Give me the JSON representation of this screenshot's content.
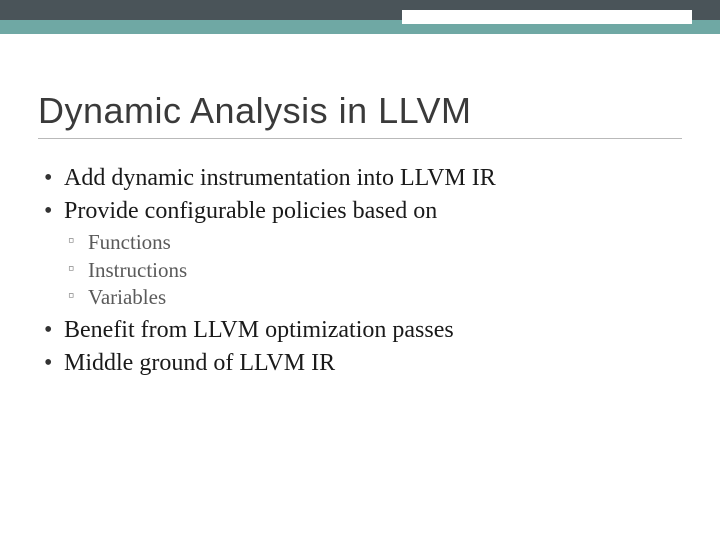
{
  "theme": {
    "band_dark": "#4a5459",
    "band_teal": "#6fa8a4",
    "title_color": "#3a3a3a",
    "text_color": "#1a1a1a",
    "sub_text_color": "#5a5a5a"
  },
  "slide": {
    "title": "Dynamic Analysis in LLVM",
    "bullets": {
      "b0": "Add dynamic instrumentation into LLVM IR",
      "b1": "Provide configurable policies based on",
      "b1_sub": {
        "s0": "Functions",
        "s1": "Instructions",
        "s2": "Variables"
      },
      "b2": "Benefit from LLVM optimization passes",
      "b3": "Middle ground of LLVM IR"
    }
  }
}
